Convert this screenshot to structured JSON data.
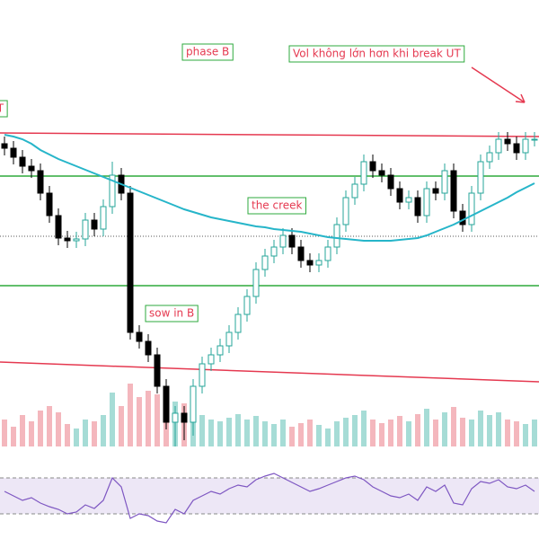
{
  "chart_data": {
    "type": "candlestick",
    "open": [
      440,
      435,
      425,
      415,
      410,
      385,
      360,
      335,
      332,
      334,
      355,
      345,
      370,
      405,
      385,
      230,
      220,
      205,
      170,
      130,
      140,
      130,
      170,
      195,
      205,
      215,
      230,
      250,
      270,
      300,
      315,
      325,
      338,
      325,
      310,
      305,
      310,
      325,
      350,
      380,
      395,
      420,
      410,
      405,
      390,
      375,
      380,
      360,
      390,
      385,
      410,
      365,
      350,
      385,
      420,
      430,
      445,
      440,
      430,
      445
    ],
    "high": [
      448,
      443,
      433,
      423,
      418,
      393,
      368,
      343,
      342,
      363,
      363,
      378,
      420,
      413,
      393,
      238,
      228,
      213,
      178,
      148,
      148,
      178,
      203,
      213,
      223,
      238,
      258,
      278,
      308,
      323,
      333,
      346,
      346,
      333,
      318,
      318,
      333,
      358,
      388,
      403,
      428,
      428,
      418,
      413,
      398,
      388,
      388,
      398,
      398,
      418,
      418,
      373,
      393,
      428,
      438,
      453,
      453,
      448,
      453,
      453
    ],
    "low": [
      427,
      417,
      407,
      402,
      377,
      352,
      327,
      324,
      324,
      326,
      337,
      337,
      362,
      377,
      222,
      212,
      197,
      162,
      122,
      103,
      110,
      115,
      162,
      187,
      197,
      207,
      222,
      242,
      262,
      292,
      307,
      317,
      317,
      302,
      297,
      297,
      302,
      317,
      342,
      372,
      387,
      402,
      397,
      382,
      367,
      367,
      352,
      352,
      377,
      377,
      357,
      342,
      342,
      377,
      412,
      422,
      432,
      422,
      422,
      437
    ],
    "close": [
      435,
      425,
      415,
      410,
      385,
      360,
      335,
      332,
      334,
      355,
      345,
      370,
      405,
      385,
      230,
      220,
      205,
      170,
      130,
      140,
      130,
      170,
      195,
      205,
      215,
      230,
      250,
      270,
      300,
      315,
      325,
      338,
      325,
      310,
      305,
      310,
      325,
      350,
      380,
      395,
      420,
      410,
      405,
      390,
      375,
      380,
      360,
      390,
      385,
      410,
      365,
      350,
      385,
      420,
      430,
      445,
      440,
      430,
      445,
      445
    ],
    "volume": [
      30,
      22,
      35,
      28,
      40,
      45,
      38,
      25,
      20,
      30,
      28,
      35,
      60,
      45,
      70,
      55,
      62,
      58,
      66,
      50,
      48,
      40,
      35,
      30,
      28,
      32,
      36,
      30,
      34,
      28,
      25,
      30,
      22,
      26,
      30,
      24,
      20,
      28,
      32,
      35,
      40,
      30,
      26,
      30,
      34,
      28,
      36,
      42,
      30,
      38,
      44,
      32,
      30,
      40,
      35,
      38,
      30,
      28,
      25,
      30
    ],
    "ma": [
      450,
      448,
      445,
      440,
      433,
      428,
      423,
      419,
      415,
      411,
      407,
      403,
      399,
      395,
      391,
      387,
      383,
      379,
      375,
      371,
      367,
      364,
      361,
      358,
      356,
      354,
      352,
      350,
      348,
      347,
      345,
      344,
      343,
      342,
      340,
      338,
      336,
      335,
      334,
      333,
      332,
      332,
      332,
      332,
      333,
      334,
      335,
      338,
      342,
      346,
      350,
      355,
      360,
      365,
      370,
      375,
      380,
      386,
      391,
      396
    ],
    "rsi": [
      55,
      50,
      45,
      48,
      42,
      38,
      35,
      30,
      32,
      40,
      36,
      45,
      70,
      60,
      25,
      30,
      28,
      22,
      20,
      35,
      30,
      45,
      50,
      55,
      52,
      58,
      62,
      60,
      68,
      72,
      75,
      70,
      65,
      60,
      55,
      58,
      62,
      66,
      70,
      72,
      68,
      60,
      55,
      50,
      48,
      52,
      45,
      60,
      55,
      62,
      42,
      40,
      58,
      66,
      64,
      68,
      60,
      58,
      62,
      55
    ],
    "ylim": [
      0,
      600
    ],
    "rsi_lim": [
      10,
      90
    ],
    "rsi_bands": [
      70,
      30
    ],
    "up_color": "#26a69a",
    "down_color": "#000000",
    "ma_color": "#26b5c9",
    "rsi_color": "#7e57c2",
    "levels": [
      {
        "color": "#e53950",
        "values": [
          452,
          448
        ]
      },
      {
        "color": "#2eaa3c",
        "values": [
          404,
          404
        ]
      },
      {
        "color": "#2eaa3c",
        "values": [
          282,
          282
        ]
      },
      {
        "color": "#e53950",
        "values": [
          197,
          175
        ]
      },
      {
        "color": "#555555",
        "values": [
          337,
          337
        ],
        "dotted": true
      }
    ],
    "annotations": [
      "UT",
      "phase B",
      "Vol không lớn hơn khi break UT",
      "the creek",
      "sow in B"
    ]
  }
}
